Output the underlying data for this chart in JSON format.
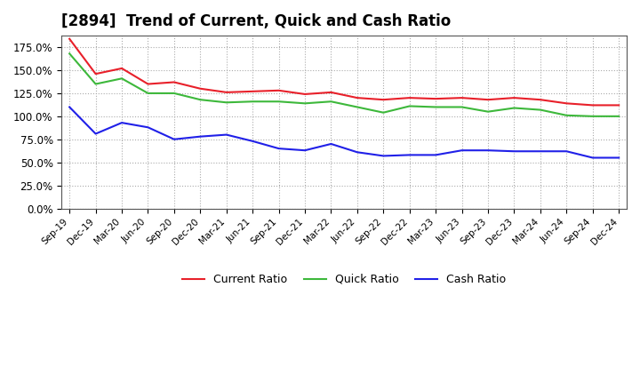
{
  "title": "[2894]  Trend of Current, Quick and Cash Ratio",
  "x_labels": [
    "Sep-19",
    "Dec-19",
    "Mar-20",
    "Jun-20",
    "Sep-20",
    "Dec-20",
    "Mar-21",
    "Jun-21",
    "Sep-21",
    "Dec-21",
    "Mar-22",
    "Jun-22",
    "Sep-22",
    "Dec-22",
    "Mar-23",
    "Jun-23",
    "Sep-23",
    "Dec-23",
    "Mar-24",
    "Jun-24",
    "Sep-24",
    "Dec-24"
  ],
  "current_ratio": [
    1.84,
    1.46,
    1.52,
    1.35,
    1.37,
    1.3,
    1.26,
    1.27,
    1.28,
    1.24,
    1.26,
    1.2,
    1.18,
    1.2,
    1.19,
    1.2,
    1.18,
    1.2,
    1.18,
    1.14,
    1.12,
    1.12
  ],
  "quick_ratio": [
    1.68,
    1.35,
    1.41,
    1.25,
    1.25,
    1.18,
    1.15,
    1.16,
    1.16,
    1.14,
    1.16,
    1.1,
    1.04,
    1.11,
    1.1,
    1.1,
    1.05,
    1.09,
    1.07,
    1.01,
    1.0,
    1.0
  ],
  "cash_ratio": [
    1.1,
    0.81,
    0.93,
    0.88,
    0.75,
    0.78,
    0.8,
    0.73,
    0.65,
    0.63,
    0.7,
    0.61,
    0.57,
    0.58,
    0.58,
    0.63,
    0.63,
    0.62,
    0.62,
    0.62,
    0.55,
    0.55
  ],
  "current_color": "#e8202a",
  "quick_color": "#3db83b",
  "cash_color": "#2020e8",
  "ylim_min": 0.0,
  "ylim_max": 1.875,
  "yticks": [
    0.0,
    0.25,
    0.5,
    0.75,
    1.0,
    1.25,
    1.5,
    1.75
  ],
  "bg_color": "#ffffff",
  "plot_bg_color": "#ffffff",
  "grid_color": "#aaaaaa",
  "title_fontsize": 12,
  "legend_labels": [
    "Current Ratio",
    "Quick Ratio",
    "Cash Ratio"
  ]
}
